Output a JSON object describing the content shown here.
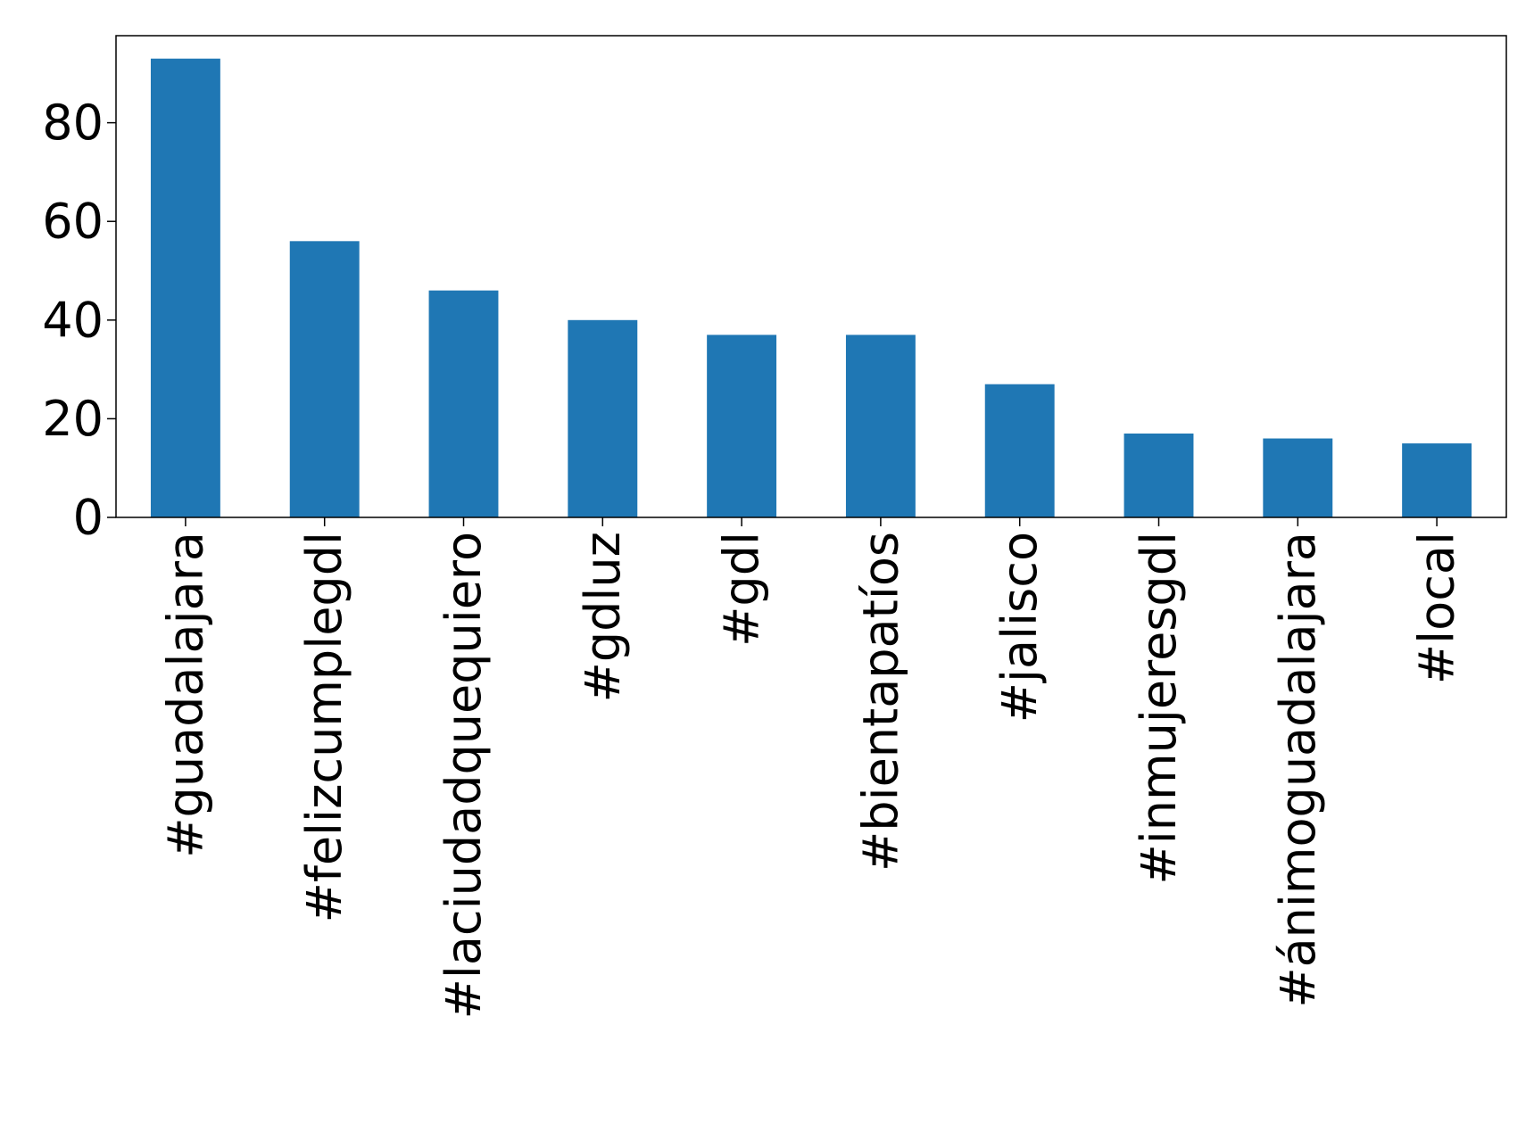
{
  "chart_data": {
    "type": "bar",
    "title": "",
    "xlabel": "",
    "ylabel": "",
    "categories": [
      "#guadalajara",
      "#felizcumplegdl",
      "#laciudadquequiero",
      "#gdluz",
      "#gdl",
      "#bientapatíos",
      "#jalisco",
      "#inmujeresgdl",
      "#ánimoguadalajara",
      "#local"
    ],
    "values": [
      93,
      56,
      46,
      40,
      37,
      37,
      27,
      17,
      16,
      15
    ],
    "ylim": [
      0,
      97.65
    ],
    "yticks": [
      0,
      20,
      40,
      60,
      80
    ],
    "ytick_labels": [
      "0",
      "20",
      "40",
      "60",
      "80"
    ],
    "bar_color": "#1f77b4",
    "grid": false,
    "legend": "none"
  }
}
